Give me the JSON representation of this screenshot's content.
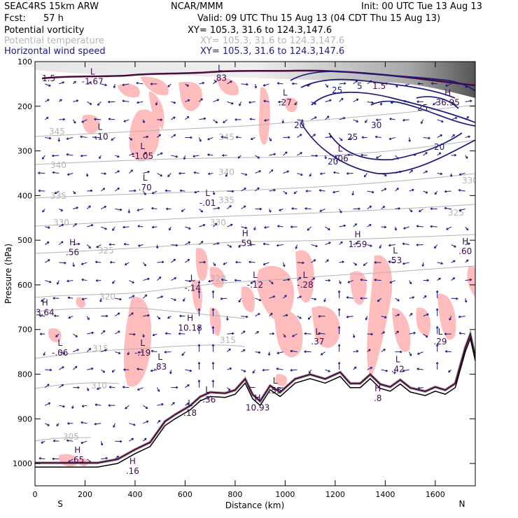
{
  "header": {
    "model": "SEAC4RS 15km ARW",
    "org": "NCAR/MMM",
    "init": "Init: 00 UTC Tue 13 Aug 13",
    "fcst_label": "Fcst:",
    "fcst_value": "57 h",
    "valid": "Valid: 09 UTC Thu 15 Aug 13 (04 CDT Thu 15 Aug 13)",
    "fields": [
      {
        "name": "Potential vorticity",
        "xy": "XY= 105.3, 31.6 to 124.3,147.6",
        "color": "#000000"
      },
      {
        "name": "Potential temperature",
        "xy": "XY= 105.3, 31.6 to 124.3,147.6",
        "color": "#b4b4b4"
      },
      {
        "name": "Horizontal wind speed",
        "xy": "XY= 105.3, 31.6 to 124.3,147.6",
        "color": "#1a1a80"
      }
    ]
  },
  "chart_data": {
    "type": "cross-section",
    "xlabel": "Distance (km)",
    "ylabel": "Pressure (hPa)",
    "xlim": [
      0,
      1760
    ],
    "ylim": [
      1050,
      100
    ],
    "x_ticks": [
      "0",
      "200",
      "400",
      "600",
      "800",
      "1000",
      "1200",
      "1400",
      "1600"
    ],
    "y_ticks": [
      "100",
      "200",
      "300",
      "400",
      "500",
      "600",
      "700",
      "800",
      "900",
      "1000"
    ],
    "endpoints": {
      "left": "S",
      "right": "N"
    },
    "theta_contours": [
      "345",
      "345",
      "340",
      "340",
      "335",
      "335",
      "330",
      "330",
      "330",
      "325",
      "325",
      "320",
      "320",
      "315",
      "315",
      "310",
      "305"
    ],
    "wind_contours": [
      "25",
      "30",
      "25",
      "20",
      "20",
      "20",
      "5",
      "25"
    ],
    "pv_extrema": [
      {
        "t": "L",
        "v": "-1.67",
        "x": 230,
        "p": 148
      },
      {
        "t": "L",
        "v": ".83",
        "x": 740,
        "p": 140
      },
      {
        "t": "L",
        "v": ".27",
        "x": 1000,
        "p": 195
      },
      {
        "t": "H",
        "v": "36.95",
        "x": 1650,
        "p": 195
      },
      {
        "t": "L",
        "v": "-.10",
        "x": 260,
        "p": 272
      },
      {
        "t": "L",
        "v": "-1.05",
        "x": 430,
        "p": 315
      },
      {
        "t": "L",
        "v": ".70",
        "x": 440,
        "p": 385
      },
      {
        "t": "L",
        "v": "-.01",
        "x": 690,
        "p": 420
      },
      {
        "t": "L",
        "v": "-.06",
        "x": 1220,
        "p": 320
      },
      {
        "t": "H",
        "v": ".56",
        "x": 150,
        "p": 530
      },
      {
        "t": "H",
        "v": ".59",
        "x": 840,
        "p": 510
      },
      {
        "t": "H",
        "v": "1.59",
        "x": 1290,
        "p": 512
      },
      {
        "t": "L",
        "v": ".53",
        "x": 1440,
        "p": 548
      },
      {
        "t": "H",
        "v": ".60",
        "x": 1720,
        "p": 528
      },
      {
        "t": "L",
        "v": "-.14",
        "x": 630,
        "p": 610
      },
      {
        "t": "L",
        "v": "-.12",
        "x": 880,
        "p": 603
      },
      {
        "t": "L",
        "v": "-.28",
        "x": 1080,
        "p": 603
      },
      {
        "t": "H",
        "v": "3.64",
        "x": 40,
        "p": 665
      },
      {
        "t": "H",
        "v": "10.18",
        "x": 620,
        "p": 700
      },
      {
        "t": "L",
        "v": ".37",
        "x": 1130,
        "p": 730
      },
      {
        "t": "L",
        "v": ".29",
        "x": 1620,
        "p": 730
      },
      {
        "t": "L",
        "v": "-.06",
        "x": 100,
        "p": 755
      },
      {
        "t": "L",
        "v": "-.19",
        "x": 430,
        "p": 755
      },
      {
        "t": "L",
        "v": ".83",
        "x": 500,
        "p": 787
      },
      {
        "t": "L",
        "v": ".42",
        "x": 1450,
        "p": 792
      },
      {
        "t": "L",
        "v": ".55",
        "x": 960,
        "p": 840
      },
      {
        "t": "H",
        "v": ".8",
        "x": 1370,
        "p": 857
      },
      {
        "t": "L",
        "v": "-.36",
        "x": 690,
        "p": 860
      },
      {
        "t": "H",
        "v": "10.93",
        "x": 890,
        "p": 878
      },
      {
        "t": "L",
        "v": ".18",
        "x": 620,
        "p": 890
      },
      {
        "t": "H",
        "v": ".65",
        "x": 170,
        "p": 995
      },
      {
        "t": "H",
        "v": ".16",
        "x": 390,
        "p": 1020
      }
    ],
    "top_labels": [
      "1.5",
      "1.5"
    ],
    "terrain_pressure": [
      [
        0,
        1008
      ],
      [
        250,
        1008
      ],
      [
        330,
        1000
      ],
      [
        400,
        978
      ],
      [
        460,
        962
      ],
      [
        520,
        915
      ],
      [
        560,
        900
      ],
      [
        620,
        880
      ],
      [
        660,
        860
      ],
      [
        700,
        850
      ],
      [
        760,
        852
      ],
      [
        800,
        845
      ],
      [
        840,
        820
      ],
      [
        870,
        855
      ],
      [
        900,
        870
      ],
      [
        940,
        835
      ],
      [
        980,
        850
      ],
      [
        1040,
        820
      ],
      [
        1100,
        810
      ],
      [
        1160,
        820
      ],
      [
        1220,
        805
      ],
      [
        1260,
        830
      ],
      [
        1300,
        830
      ],
      [
        1340,
        810
      ],
      [
        1380,
        832
      ],
      [
        1420,
        838
      ],
      [
        1460,
        822
      ],
      [
        1500,
        840
      ],
      [
        1560,
        848
      ],
      [
        1600,
        838
      ],
      [
        1640,
        845
      ],
      [
        1680,
        830
      ],
      [
        1720,
        750
      ],
      [
        1740,
        720
      ],
      [
        1760,
        770
      ]
    ]
  }
}
